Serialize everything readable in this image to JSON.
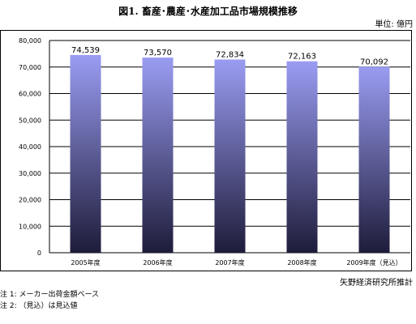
{
  "title": "図1. 畜産･農産･水産加工品市場規模推移",
  "unit_label": "単位: 億円",
  "source": "矢野経済研究所推計",
  "notes": [
    "注 1: メーカー出荷金額ベース",
    "注 2: （見込）は見込値"
  ],
  "colors": {
    "bar_top": "#9a9cf2",
    "bar_bottom": "#1e1c3a",
    "grid": "#000000"
  },
  "chart_data": {
    "type": "bar",
    "categories": [
      "2005年度",
      "2006年度",
      "2007年度",
      "2008年度",
      "2009年度（見込）"
    ],
    "values": [
      74539,
      73570,
      72834,
      72163,
      70092
    ],
    "data_labels": [
      "74,539",
      "73,570",
      "72,834",
      "72,163",
      "70,092"
    ],
    "y_ticks": [
      "0",
      "10,000",
      "20,000",
      "30,000",
      "40,000",
      "50,000",
      "60,000",
      "70,000",
      "80,000"
    ],
    "ylim": [
      0,
      80000
    ],
    "grid": true,
    "legend": "none",
    "xlabel": "",
    "ylabel": ""
  }
}
